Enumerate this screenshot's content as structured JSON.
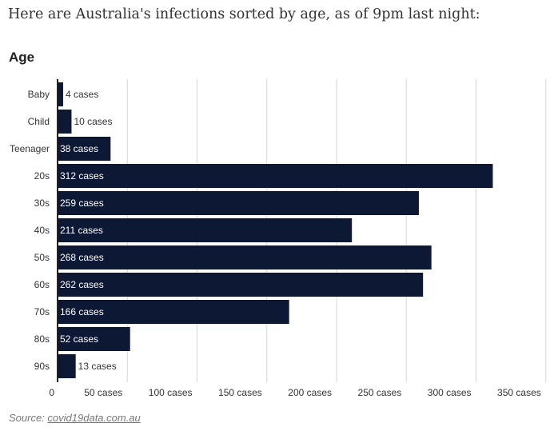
{
  "intro_text": "Here are Australia's infections sorted by age, as of 9pm last night:",
  "colors": {
    "bar": "#0d1835",
    "grid": "#d6d6d6",
    "axis": "#222222",
    "text": "#333333",
    "label_on_bar": "#ffffff"
  },
  "chart_data": {
    "type": "bar",
    "orientation": "horizontal",
    "title": "Age",
    "categories": [
      "Baby",
      "Child",
      "Teenager",
      "20s",
      "30s",
      "40s",
      "50s",
      "60s",
      "70s",
      "80s",
      "90s"
    ],
    "values": [
      4,
      10,
      38,
      312,
      259,
      211,
      268,
      262,
      166,
      52,
      13
    ],
    "data_labels": [
      "4 cases",
      "10 cases",
      "38 cases",
      "312 cases",
      "259 cases",
      "211 cases",
      "268 cases",
      "262 cases",
      "166 cases",
      "52 cases",
      "13 cases"
    ],
    "xlim": [
      0,
      350
    ],
    "x_ticks": [
      0,
      50,
      100,
      150,
      200,
      250,
      300,
      350
    ],
    "x_tick_labels": [
      "0",
      "50 cases",
      "100 cases",
      "150 cases",
      "200 cases",
      "250 cases",
      "300 cases",
      "350 cases"
    ],
    "grid": true
  },
  "source": {
    "prefix": "Source: ",
    "link_text": "covid19data.com.au"
  }
}
